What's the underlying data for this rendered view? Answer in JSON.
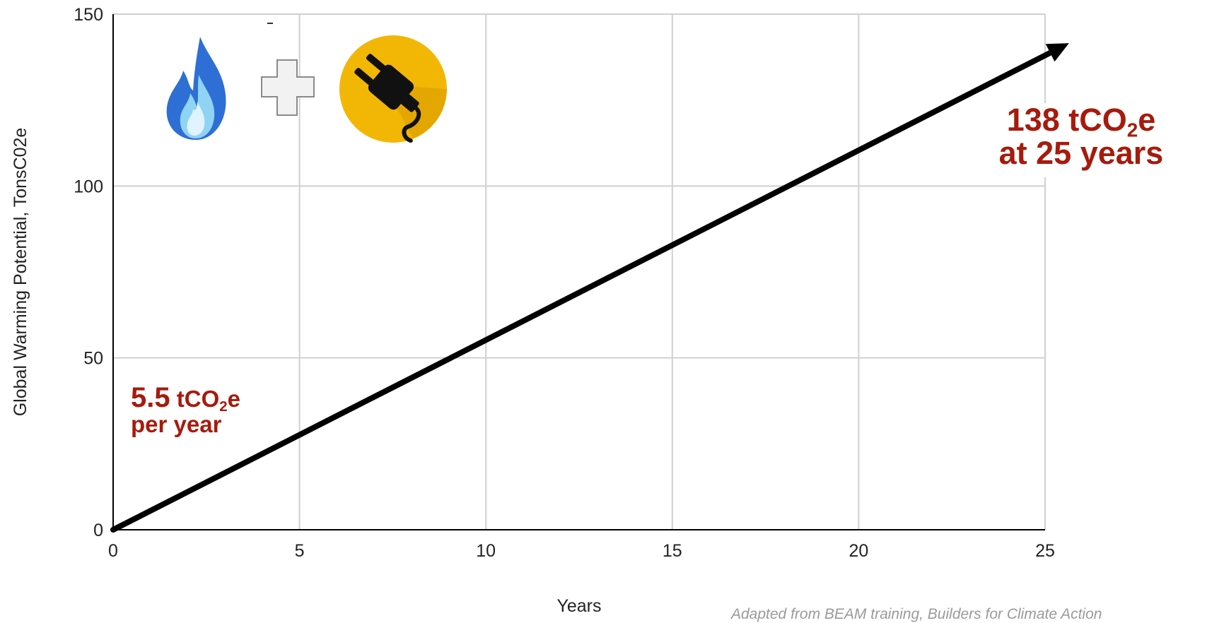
{
  "chart_data": {
    "type": "line",
    "xlabel": "Years",
    "ylabel": "Global Warming Potential, TonsC02e",
    "xlim": [
      0,
      25
    ],
    "ylim": [
      0,
      150
    ],
    "xticks": [
      0,
      5,
      10,
      15,
      20,
      25
    ],
    "yticks": [
      0,
      50,
      100,
      150
    ],
    "grid": true,
    "series": [
      {
        "x": [
          0,
          25
        ],
        "y": [
          0,
          138
        ],
        "color": "#000000",
        "arrow_end": true
      }
    ],
    "annotations": {
      "end_value": {
        "num": "138 tCO",
        "sub": "2",
        "tail": "e",
        "line2": "at 25 years"
      },
      "rate": {
        "num": "5.5",
        "unit": " tCO",
        "sub": "2",
        "tail": "e",
        "line2": "per year"
      }
    },
    "icons": [
      "gas-flame-icon",
      "plus-icon",
      "electric-plug-icon"
    ],
    "colors": {
      "annotation": "#a61b0d",
      "grid": "#d0d0d0",
      "axis": "#000000",
      "flame_outer": "#2d6fd4",
      "flame_inner": "#8fd3f5",
      "plug_circle": "#f2b705"
    }
  },
  "credit": "Adapted from BEAM training, Builders for Climate Action"
}
